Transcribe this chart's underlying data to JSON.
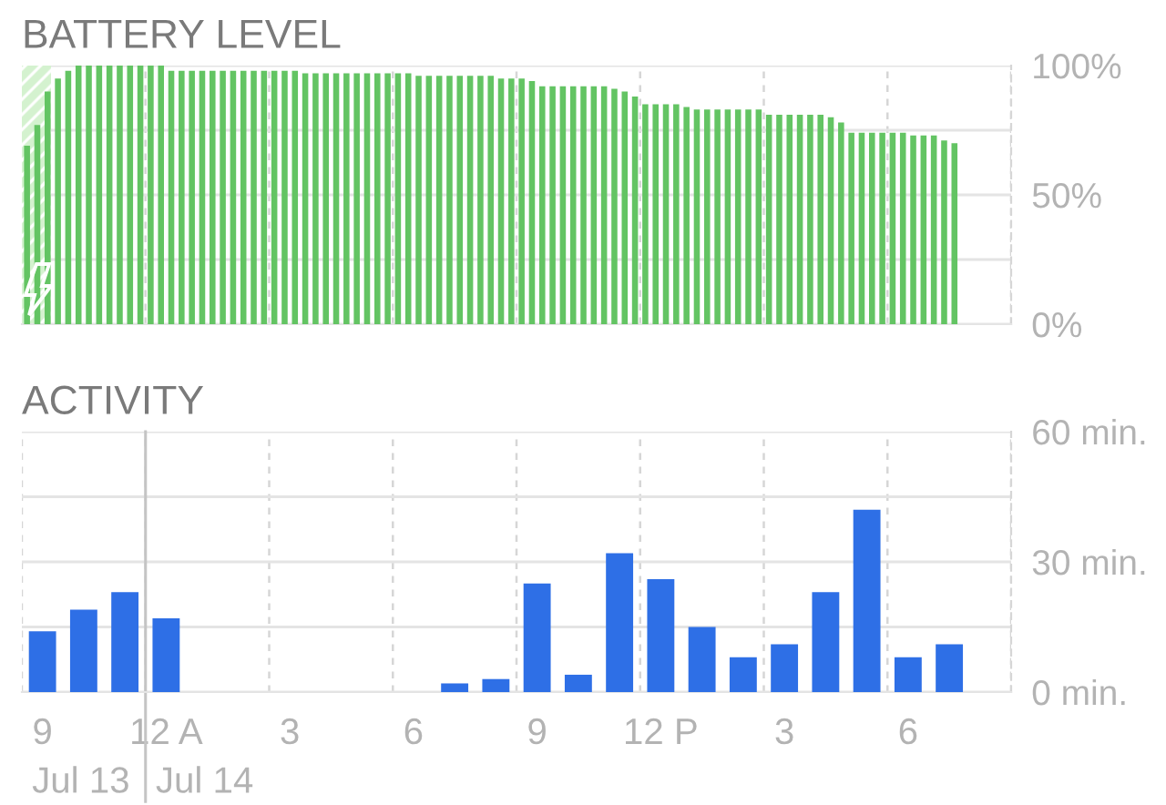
{
  "chart_data": [
    {
      "type": "bar",
      "title": "BATTERY LEVEL",
      "categories": [
        null,
        null,
        null,
        null,
        null,
        null,
        null,
        null,
        null,
        null,
        null,
        null,
        null,
        null,
        null,
        null,
        null,
        null,
        null,
        null,
        null,
        null,
        null,
        null,
        null,
        null,
        null,
        null,
        null,
        null,
        null,
        null,
        null,
        null,
        null,
        null,
        null,
        null,
        null,
        null,
        null,
        null,
        null,
        null,
        null,
        null,
        null,
        null,
        null,
        null,
        null,
        null,
        null,
        null,
        null,
        null,
        null,
        null,
        null,
        null,
        null,
        null,
        null,
        null,
        null,
        null,
        null,
        null,
        null,
        null,
        null,
        null,
        null,
        null,
        null,
        null,
        null,
        null,
        null,
        null,
        null,
        null,
        null,
        null,
        null,
        null,
        null,
        null,
        null,
        null,
        null,
        null,
        null,
        null,
        null,
        null
      ],
      "values": [
        69,
        77,
        90,
        95,
        98,
        100,
        100,
        100,
        100,
        100,
        100,
        100,
        100,
        100,
        98,
        98,
        98,
        98,
        98,
        98,
        98,
        98,
        98,
        98,
        98,
        98,
        98,
        97,
        97,
        97,
        97,
        97,
        97,
        97,
        97,
        97,
        97,
        97,
        96,
        96,
        96,
        96,
        96,
        96,
        96,
        96,
        95,
        95,
        95,
        94,
        92,
        92,
        92,
        92,
        92,
        92,
        92,
        91,
        90,
        88,
        85,
        85,
        85,
        85,
        84,
        83,
        83,
        83,
        83,
        83,
        83,
        83,
        81,
        81,
        81,
        81,
        81,
        81,
        80,
        78,
        74,
        74,
        74,
        74,
        74,
        74,
        73,
        73,
        73,
        71,
        70,
        null,
        null,
        null,
        null,
        null
      ],
      "color": "#63c463",
      "ylim": [
        0,
        100
      ],
      "yticks": [
        {
          "value": 0,
          "label": "0%"
        },
        {
          "value": 25,
          "label": null
        },
        {
          "value": 50,
          "label": "50%"
        },
        {
          "value": 75,
          "label": null
        },
        {
          "value": 100,
          "label": "100%"
        }
      ],
      "grid": true,
      "tick_labels": "y"
    },
    {
      "type": "bar",
      "title": "ACTIVITY",
      "categories": [
        "9",
        null,
        null,
        "12 A",
        null,
        null,
        "3",
        null,
        null,
        "6",
        null,
        null,
        "9",
        null,
        null,
        "12 P",
        null,
        null,
        "3",
        null,
        null,
        "6",
        null,
        null
      ],
      "values": [
        14,
        19,
        23,
        17,
        0,
        0,
        0,
        0,
        0,
        0,
        2,
        3,
        25,
        4,
        32,
        26,
        15,
        8,
        11,
        23,
        42,
        8,
        11,
        null
      ],
      "color": "#2e6fe6",
      "ylim": [
        0,
        60
      ],
      "yticks": [
        {
          "value": 0,
          "label": "0 min."
        },
        {
          "value": 15,
          "label": null
        },
        {
          "value": 30,
          "label": "30 min."
        },
        {
          "value": 45,
          "label": null
        },
        {
          "value": 60,
          "label": "60 min."
        }
      ],
      "grid": true,
      "ref_lines": [
        {
          "axis": "x",
          "value": "12 A",
          "label": "Jul 14",
          "color": "#c4c4c4"
        }
      ],
      "annotations": [
        "Jul 13"
      ]
    }
  ]
}
